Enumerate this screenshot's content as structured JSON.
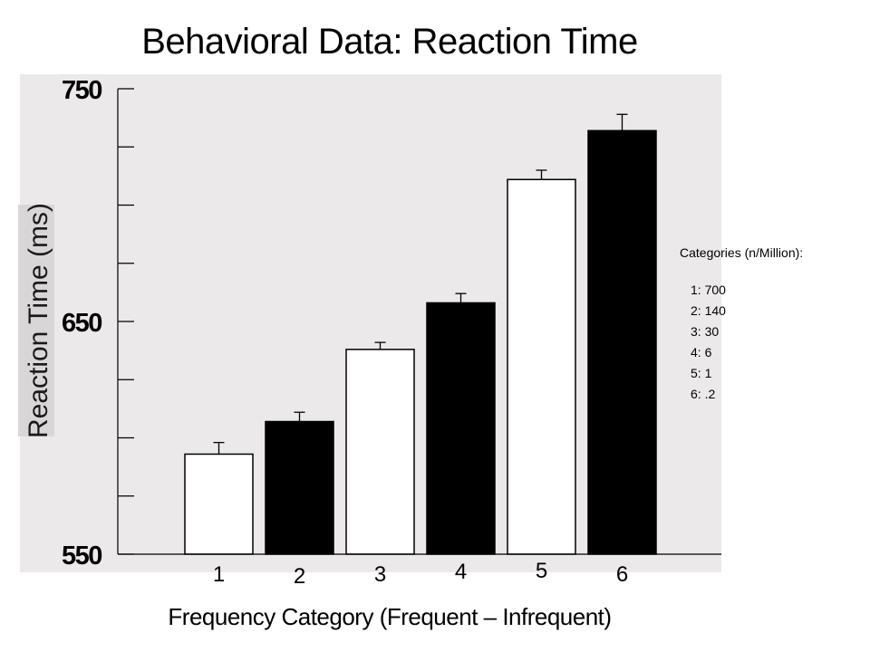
{
  "title": "Behavioral Data: Reaction Time",
  "chart_data": {
    "type": "bar",
    "title": "Behavioral Data: Reaction Time",
    "xlabel": "Frequency Category (Frequent – Infrequent)",
    "ylabel": "Reaction Time (ms)",
    "ylim": [
      550,
      750
    ],
    "yticks": [
      550,
      650,
      750
    ],
    "yticks_labeled": [
      "550",
      "650",
      "750"
    ],
    "categories": [
      "1",
      "2",
      "3",
      "4",
      "5",
      "6"
    ],
    "values": [
      593,
      607,
      638,
      658,
      711,
      732
    ],
    "error": [
      5,
      4,
      3,
      4,
      4,
      7
    ],
    "fill": [
      "white",
      "black",
      "white",
      "black",
      "white",
      "black"
    ],
    "grid": false,
    "legend": {
      "title": "Categories (n/Million):",
      "items": [
        "1: 700",
        "2: 140",
        "3: 30",
        "4: 6",
        "5: 1",
        "6: .2"
      ],
      "placement": "right"
    }
  },
  "colors": {
    "plot_background": "#ece9ea",
    "bar_dark": "#000000",
    "bar_light": "#ffffff"
  }
}
